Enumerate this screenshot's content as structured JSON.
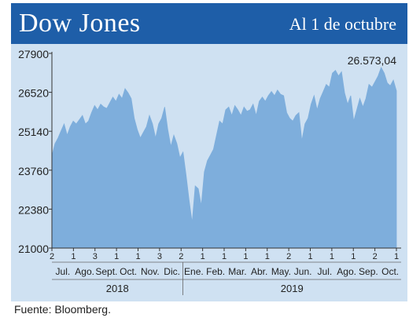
{
  "header": {
    "title": "Dow Jones",
    "date": "Al 1 de octubre"
  },
  "source": "Fuente: Bloomberg.",
  "colors": {
    "header": "#1e5ea8",
    "plot_bg": "#cfe1f2",
    "area": "#7eaedc"
  },
  "chart_data": {
    "type": "area",
    "title": "Dow Jones",
    "subtitle": "Al 1 de octubre",
    "ylim": [
      21000,
      27900
    ],
    "yticks": [
      "27900",
      "26520",
      "25140",
      "23760",
      "22380",
      "21000"
    ],
    "last_value_label": "26.573,04",
    "months": [
      "Jul.",
      "Ago.",
      "Sept.",
      "Oct.",
      "Nov.",
      "Dic.",
      "Ene.",
      "Feb.",
      "Mar.",
      "Abr.",
      "May.",
      "Jun.",
      "Jul.",
      "Ago.",
      "Sep.",
      "Oct."
    ],
    "years": [
      "2018",
      "2019"
    ],
    "day_ticks": [
      "2",
      "1",
      "3",
      "1",
      "1",
      "3",
      "2",
      "1",
      "1",
      "1",
      "1",
      "2",
      "1",
      "1",
      "1",
      "2",
      "1"
    ],
    "series": [
      {
        "values": [
          24270,
          24700,
          24900,
          25150,
          25400,
          25000,
          25300,
          25500,
          25400,
          25550,
          25700,
          25400,
          25500,
          25800,
          26050,
          25900,
          26100,
          26000,
          25950,
          26150,
          26350,
          26200,
          26450,
          26300,
          26650,
          26500,
          26300,
          25600,
          25200,
          24900,
          25100,
          25300,
          25700,
          25400,
          24900,
          25400,
          25600,
          26000,
          25200,
          24600,
          25000,
          24700,
          24200,
          24400,
          23600,
          22700,
          21900,
          23200,
          23100,
          22500,
          23700,
          24100,
          24300,
          24500,
          25000,
          25500,
          25400,
          25900,
          26000,
          25700,
          26050,
          25900,
          25700,
          26000,
          25850,
          25900,
          26100,
          25700,
          26200,
          26350,
          26200,
          26400,
          26550,
          26400,
          26600,
          26450,
          26400,
          25800,
          25600,
          25500,
          25700,
          25800,
          24800,
          25400,
          25600,
          26100,
          26400,
          25900,
          26300,
          26550,
          26800,
          26700,
          27200,
          27300,
          27100,
          27250,
          26500,
          26100,
          26400,
          25500,
          25900,
          26300,
          26000,
          26300,
          26800,
          26700,
          26900,
          27100,
          27400,
          27200,
          26850,
          26750,
          26950,
          26573.04
        ]
      }
    ]
  }
}
